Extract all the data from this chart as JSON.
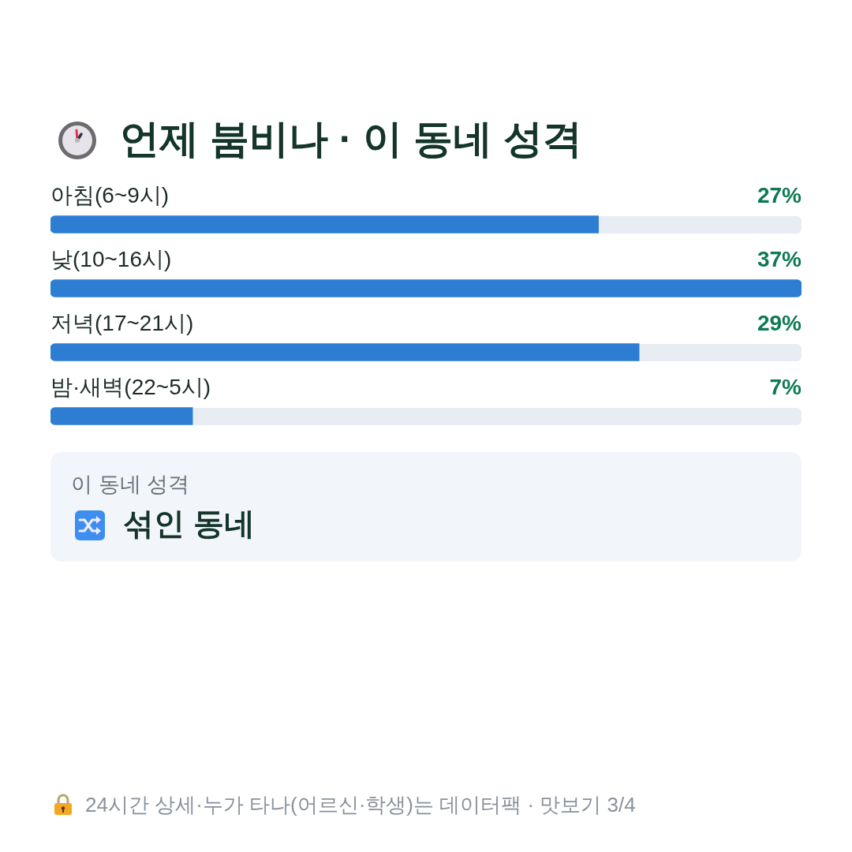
{
  "chart_data": {
    "type": "bar",
    "orientation": "horizontal",
    "title": "언제 붐비나 · 이 동네 성격",
    "categories": [
      "아침(6~9시)",
      "낮(10~16시)",
      "저녁(17~21시)",
      "밤·새벽(22~5시)"
    ],
    "values": [
      27,
      37,
      29,
      7
    ],
    "value_labels": [
      "27%",
      "37%",
      "29%",
      "7%"
    ],
    "color": "#2d7dd2",
    "tick_labels": "y",
    "annotations": [
      "이 동네 성격",
      "섞인 동네",
      "24시간 상세·누가 타나(어르신·학생)는 데이터팩 · 맛보기 3/4"
    ]
  }
}
